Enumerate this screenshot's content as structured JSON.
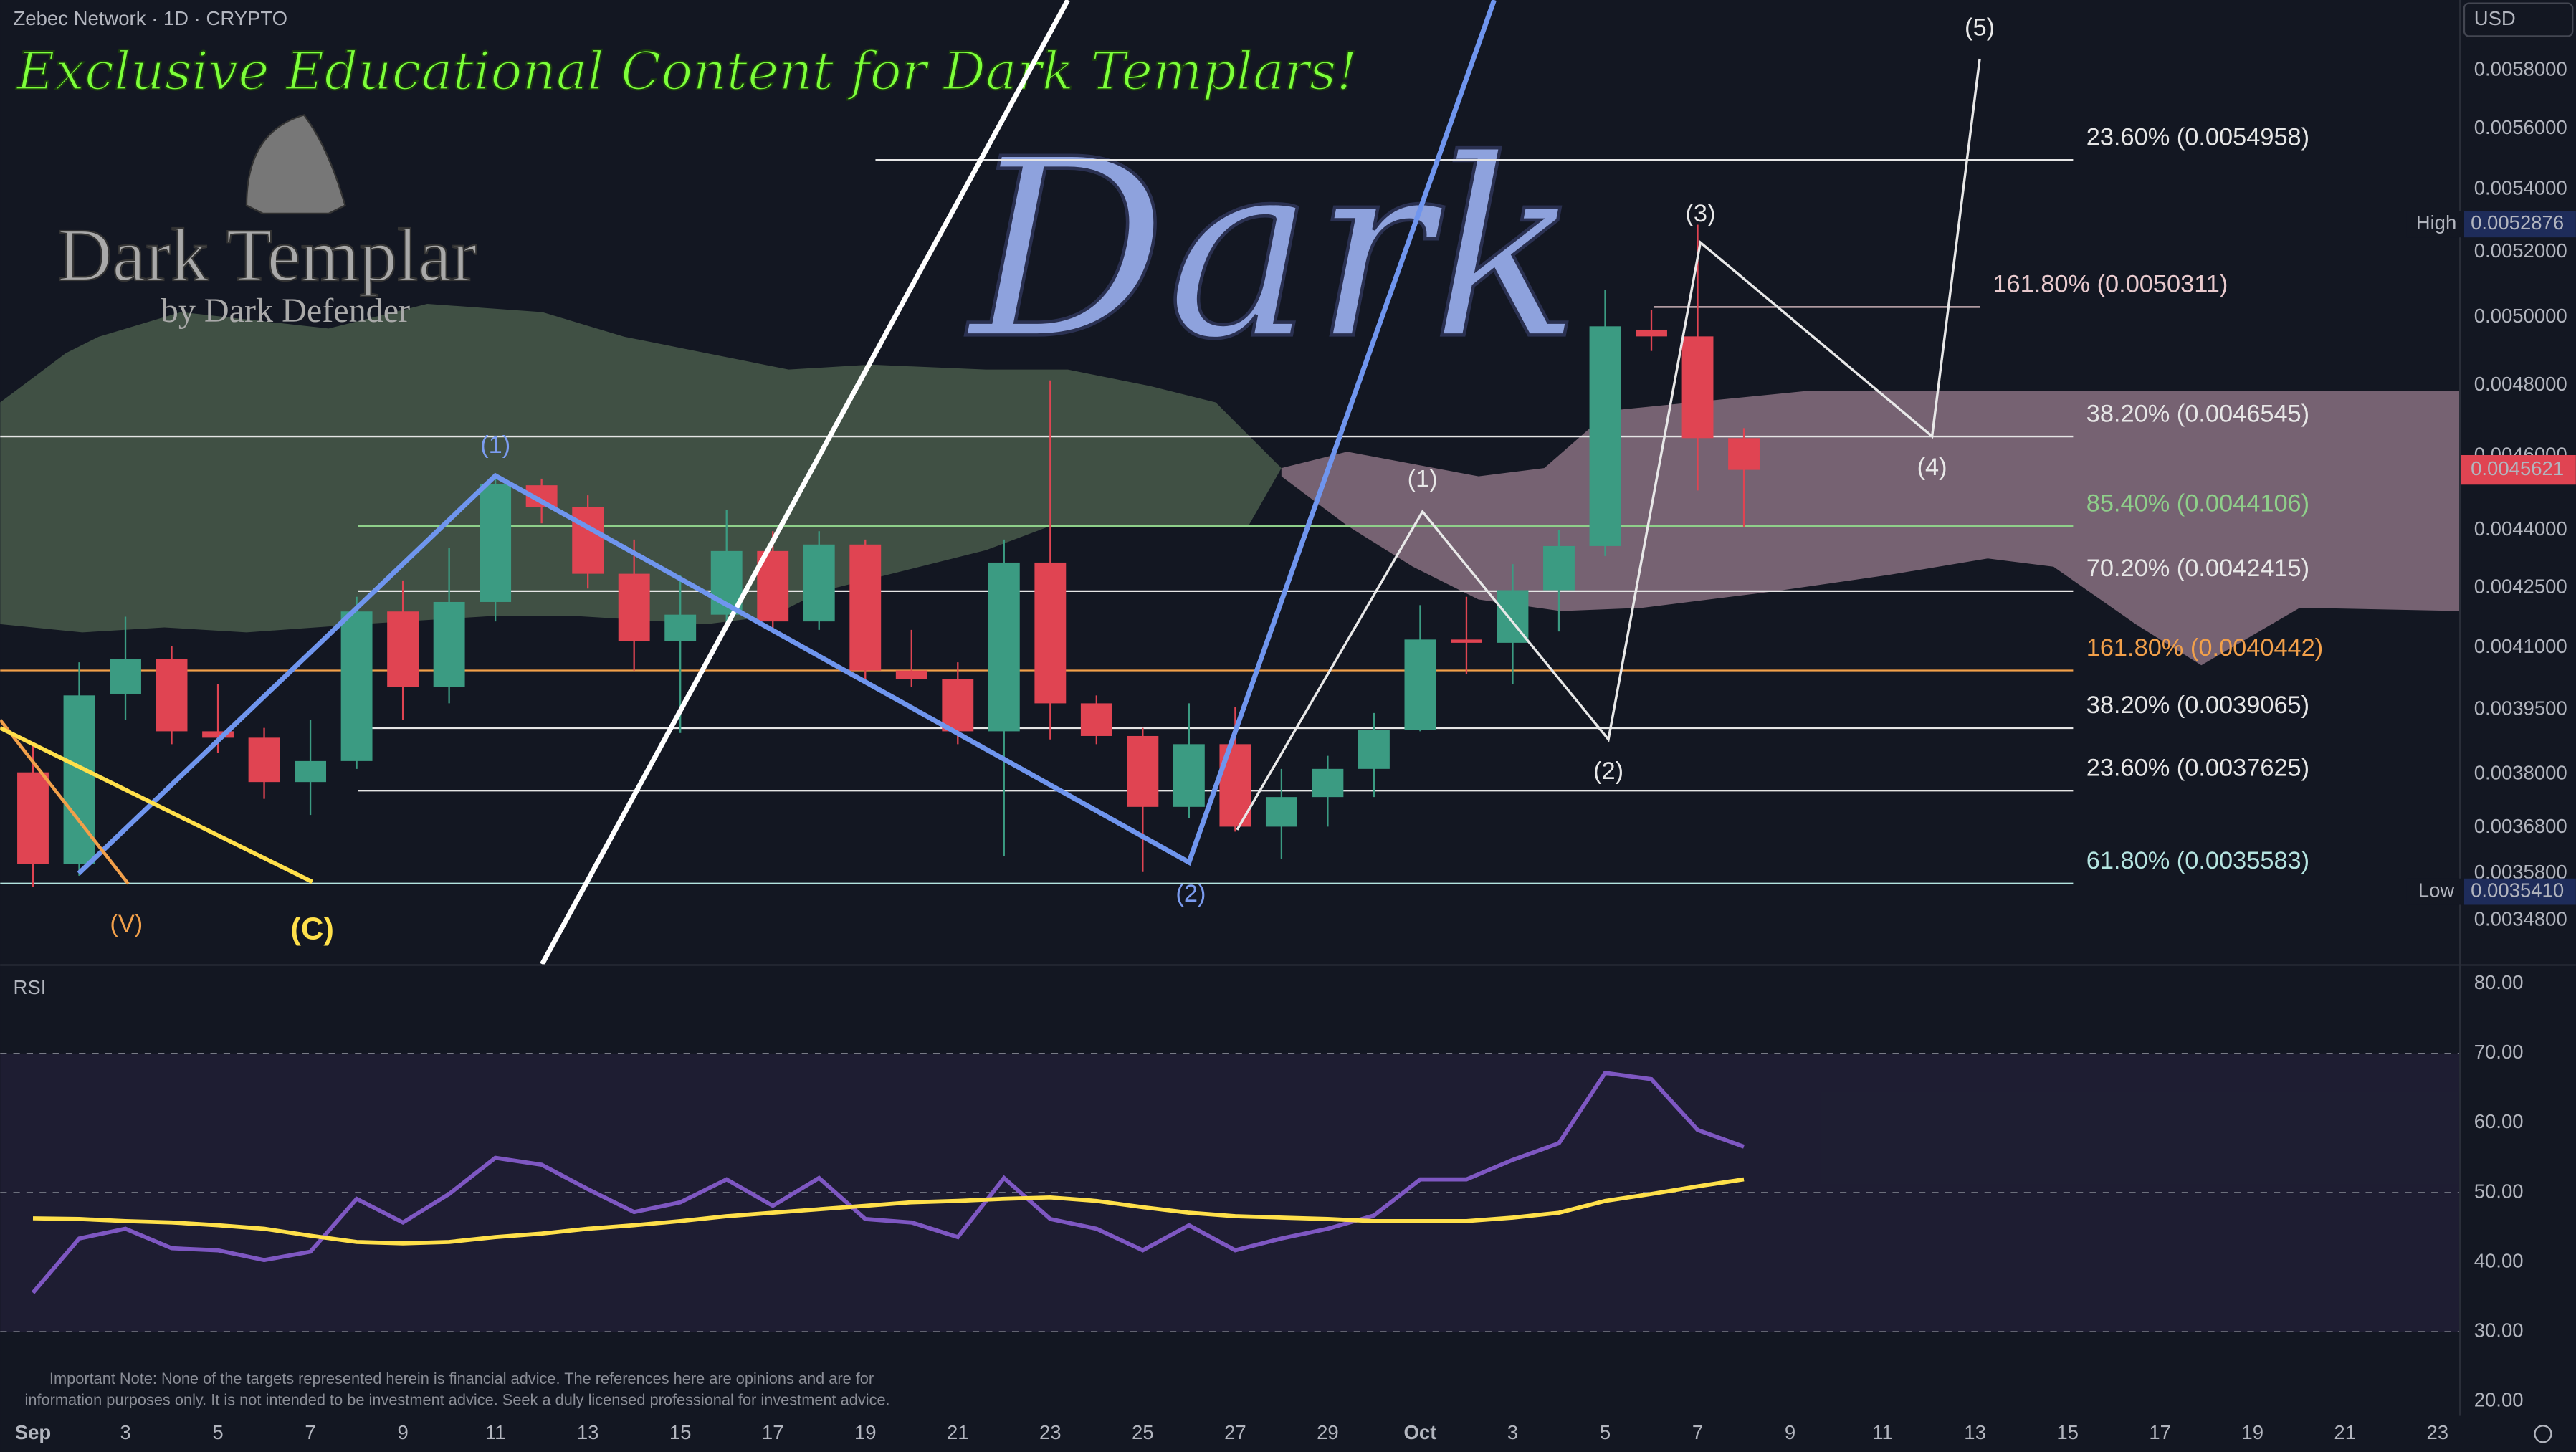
{
  "header": {
    "title": "Zebec Network · 1D · CRYPTO",
    "currency": "USD",
    "banner": "Exclusive Educational Content for Dark Templars!",
    "logo_title": "Dark Templar",
    "logo_subtitle": "by Dark Defender",
    "watermark": "Dark",
    "note": [
      "Important Note: None of the targets represented herein is financial advice. The references here are opinions and are for",
      "information purposes only. It is not intended to be investment advice. Seek a duly licensed professional for investment advice."
    ]
  },
  "chart_data": [
    {
      "type": "candlestick",
      "log_scale": true,
      "up_color": "#3b9b82",
      "down_color": "#e04452",
      "x": [
        0,
        1,
        2,
        3,
        4,
        5,
        6,
        7,
        8,
        9,
        10,
        11,
        12,
        13,
        14,
        15,
        16,
        17,
        18,
        19,
        20,
        21,
        22,
        23,
        24,
        25,
        26,
        27,
        28,
        29,
        30,
        31,
        32,
        33,
        34,
        35,
        36,
        37
      ],
      "open": [
        0.003804,
        0.0036,
        0.003988,
        0.004072,
        0.003899,
        0.003884,
        0.003782,
        0.00383,
        0.00419,
        0.004004,
        0.004214,
        0.00452,
        0.004462,
        0.004286,
        0.004116,
        0.004182,
        0.004345,
        0.004165,
        0.004362,
        0.004044,
        0.004024,
        0.003899,
        0.004315,
        0.003965,
        0.003888,
        0.003726,
        0.003869,
        0.003682,
        0.003748,
        0.003812,
        0.003903,
        0.00412,
        0.004112,
        0.004244,
        0.004358,
        0.004963,
        0.004943,
        0.00465
      ],
      "high": [
        0.003869,
        0.004064,
        0.004177,
        0.004104,
        0.004012,
        0.003907,
        0.003926,
        0.004227,
        0.004269,
        0.004354,
        0.004551,
        0.004538,
        0.004493,
        0.004375,
        0.004282,
        0.004453,
        0.004397,
        0.004397,
        0.004375,
        0.004144,
        0.004064,
        0.004375,
        0.004814,
        0.003984,
        0.003907,
        0.003965,
        0.003957,
        0.003812,
        0.003842,
        0.003942,
        0.004206,
        0.004227,
        0.004311,
        0.004401,
        0.005082,
        0.005022,
        0.005286,
        0.004678
      ],
      "low": [
        0.003551,
        0.003575,
        0.003926,
        0.003869,
        0.003849,
        0.003744,
        0.003708,
        0.003812,
        0.003926,
        0.003965,
        0.004165,
        0.004418,
        0.004248,
        0.004044,
        0.003895,
        0.004144,
        0.004144,
        0.004144,
        0.004024,
        0.004004,
        0.003869,
        0.003618,
        0.00388,
        0.003869,
        0.003583,
        0.003701,
        0.003671,
        0.003611,
        0.003682,
        0.003748,
        0.003899,
        0.004036,
        0.004012,
        0.00414,
        0.004332,
        0.0049,
        0.004506,
        0.004409
      ],
      "close": [
        0.0036,
        0.003984,
        0.004072,
        0.003899,
        0.003884,
        0.003782,
        0.00383,
        0.00419,
        0.004004,
        0.004214,
        0.004524,
        0.004462,
        0.004286,
        0.004116,
        0.004182,
        0.004345,
        0.004165,
        0.004362,
        0.004044,
        0.004024,
        0.003899,
        0.004315,
        0.003965,
        0.003888,
        0.003726,
        0.003869,
        0.003682,
        0.003748,
        0.003812,
        0.003903,
        0.00412,
        0.004112,
        0.004244,
        0.004358,
        0.004973,
        0.004943,
        0.00465,
        0.0045621
      ],
      "xlim": [
        -0.71,
        52.47
      ],
      "ylim": [
        0.00339,
        0.00605
      ],
      "xticks": [
        {
          "value": 0,
          "label": "Sep"
        },
        {
          "value": 2,
          "label": "3"
        },
        {
          "value": 4,
          "label": "5"
        },
        {
          "value": 6,
          "label": "7"
        },
        {
          "value": 8,
          "label": "9"
        },
        {
          "value": 10,
          "label": "11"
        },
        {
          "value": 12,
          "label": "13"
        },
        {
          "value": 14,
          "label": "15"
        },
        {
          "value": 16,
          "label": "17"
        },
        {
          "value": 18,
          "label": "19"
        },
        {
          "value": 20,
          "label": "21"
        },
        {
          "value": 22,
          "label": "23"
        },
        {
          "value": 24,
          "label": "25"
        },
        {
          "value": 26,
          "label": "27"
        },
        {
          "value": 28,
          "label": "29"
        },
        {
          "value": 30,
          "label": "Oct"
        },
        {
          "value": 32,
          "label": "3"
        },
        {
          "value": 34,
          "label": "5"
        },
        {
          "value": 36,
          "label": "7"
        },
        {
          "value": 38,
          "label": "9"
        },
        {
          "value": 40,
          "label": "11"
        },
        {
          "value": 42,
          "label": "13"
        },
        {
          "value": 44,
          "label": "15"
        },
        {
          "value": 46,
          "label": "17"
        },
        {
          "value": 48,
          "label": "19"
        },
        {
          "value": 50,
          "label": "21"
        },
        {
          "value": 52,
          "label": "23"
        }
      ],
      "yticks": [
        {
          "value": 0.0058,
          "label": "0.0058000"
        },
        {
          "value": 0.0056,
          "label": "0.0056000"
        },
        {
          "value": 0.0054,
          "label": "0.0054000"
        },
        {
          "value": 0.0052,
          "label": "0.0052000"
        },
        {
          "value": 0.005,
          "label": "0.0050000"
        },
        {
          "value": 0.0048,
          "label": "0.0048000"
        },
        {
          "value": 0.0046,
          "label": "0.0046000"
        },
        {
          "value": 0.0044,
          "label": "0.0044000"
        },
        {
          "value": 0.00425,
          "label": "0.0042500"
        },
        {
          "value": 0.0041,
          "label": "0.0041000"
        },
        {
          "value": 0.00395,
          "label": "0.0039500"
        },
        {
          "value": 0.0038,
          "label": "0.0038000"
        },
        {
          "value": 0.00368,
          "label": "0.0036800"
        },
        {
          "value": 0.00358,
          "label": "0.0035800"
        },
        {
          "value": 0.00348,
          "label": "0.0034800"
        }
      ],
      "high_marker": {
        "label": "High",
        "value": 0.0052876,
        "value_label": "0.0052876"
      },
      "low_marker": {
        "label": "Low",
        "value": 0.003541,
        "value_label": "0.0035410"
      },
      "last_price": 0.0045621,
      "fib_levels": [
        {
          "label": "23.60% (0.0054958)",
          "value": 0.0054958,
          "from": 18.22,
          "to": 44.12,
          "color": "#e6e6e6"
        },
        {
          "label": "161.80% (0.0050311)",
          "value": 0.0050311,
          "from": 35.06,
          "to": 42.1,
          "color": "#e8c9cd"
        },
        {
          "label": "38.20% (0.0046545)",
          "value": 0.0046545,
          "from": -0.71,
          "to": 44.12,
          "color": "#e6e6e6"
        },
        {
          "label": "85.40% (0.0044106)",
          "value": 0.0044106,
          "from": 7.03,
          "to": 44.12,
          "color": "#8fcf8a"
        },
        {
          "label": "70.20% (0.0042415)",
          "value": 0.0042415,
          "from": 7.03,
          "to": 44.12,
          "color": "#e6e6e6"
        },
        {
          "label": "161.80% (0.0040442)",
          "value": 0.0040442,
          "from": -0.71,
          "to": 44.12,
          "color": "#f2a04a"
        },
        {
          "label": "38.20% (0.0039065)",
          "value": 0.0039065,
          "from": 7.03,
          "to": 44.12,
          "color": "#e6e6e6"
        },
        {
          "label": "23.60% (0.0037625)",
          "value": 0.0037625,
          "from": 7.03,
          "to": 44.12,
          "color": "#e6e6e6"
        },
        {
          "label": "61.80% (0.0035583)",
          "value": 0.0035583,
          "from": -0.71,
          "to": 44.12,
          "color": "#b4e4e0"
        }
      ],
      "waves": [
        {
          "color": "#ffffff",
          "width": 3,
          "points": [
            [
              11.01,
              0.00339
            ],
            [
              22.38,
              0.00605
            ]
          ]
        },
        {
          "color": "#6f95ee",
          "width": 3,
          "points": [
            [
              0.99,
              0.00358
            ],
            [
              10,
              0.004546
            ],
            [
              25,
              0.003604
            ],
            [
              31.6,
              0.00605
            ]
          ]
        },
        {
          "color": "#e8e8e8",
          "width": 1.5,
          "points": [
            [
              26.04,
              0.003675
            ],
            [
              30.05,
              0.004449
            ],
            [
              34.07,
              0.00388
            ],
            [
              36.06,
              0.00523
            ],
            [
              41.07,
              0.004655
            ],
            [
              42.1,
              0.00584
            ]
          ]
        },
        {
          "color": "#f2a04a",
          "width": 2,
          "points": [
            [
              -0.71,
              0.003926
            ],
            [
              2.06,
              0.003558
            ]
          ]
        },
        {
          "color": "#ffe04a",
          "width": 2.5,
          "points": [
            [
              -0.71,
              0.003907
            ],
            [
              6.04,
              0.003562
            ]
          ]
        }
      ],
      "wave_labels": [
        {
          "text": "(1)",
          "x": 10,
          "y": 0.004627,
          "color": "#7b9cf0"
        },
        {
          "text": "(2)",
          "x": 25.04,
          "y": 0.003534,
          "color": "#7b9cf0"
        },
        {
          "text": "(V)",
          "x": 2.02,
          "y": 0.00347,
          "color": "#f2a04a"
        },
        {
          "text": "(C)",
          "x": 6.04,
          "y": 0.003458,
          "color": "#ffe04a"
        },
        {
          "text": "(1)",
          "x": 30.05,
          "y": 0.004533,
          "color": "#e8e8e8"
        },
        {
          "text": "(2)",
          "x": 34.07,
          "y": 0.003804,
          "color": "#e8e8e8"
        },
        {
          "text": "(3)",
          "x": 36.06,
          "y": 0.005317,
          "color": "#e8e8e8"
        },
        {
          "text": "(4)",
          "x": 41.07,
          "y": 0.004565,
          "color": "#e8e8e8"
        },
        {
          "text": "(5)",
          "x": 42.1,
          "y": 0.005945,
          "color": "#e8e8e8"
        }
      ]
    },
    {
      "type": "line",
      "title": "RSI",
      "x": [
        0,
        1,
        2,
        3,
        4,
        5,
        6,
        7,
        8,
        9,
        10,
        11,
        12,
        13,
        14,
        15,
        16,
        17,
        18,
        19,
        20,
        21,
        22,
        23,
        24,
        25,
        26,
        27,
        28,
        29,
        30,
        31,
        32,
        33,
        34,
        35,
        36,
        37
      ],
      "series": [
        {
          "color": "#7e57c2",
          "values": [
            35.6,
            43.4,
            44.8,
            42.0,
            41.7,
            40.3,
            41.5,
            49.1,
            45.7,
            49.8,
            55.0,
            54.0,
            50.5,
            47.2,
            48.6,
            51.9,
            48.1,
            52.1,
            46.2,
            45.7,
            43.6,
            52.1,
            46.2,
            44.8,
            41.7,
            45.3,
            41.7,
            43.4,
            44.8,
            46.7,
            51.9,
            51.9,
            54.7,
            57.1,
            67.2,
            66.3,
            59.0,
            56.6
          ]
        },
        {
          "color": "#ffe04a",
          "values": [
            46.3,
            46.2,
            45.9,
            45.7,
            45.3,
            44.8,
            43.8,
            42.9,
            42.7,
            42.9,
            43.6,
            44.1,
            44.8,
            45.3,
            45.9,
            46.6,
            47.1,
            47.6,
            48.1,
            48.6,
            48.8,
            49.1,
            49.3,
            48.8,
            47.9,
            47.1,
            46.6,
            46.4,
            46.2,
            45.9,
            45.9,
            45.9,
            46.4,
            47.1,
            48.8,
            49.8,
            50.9,
            51.9
          ]
        }
      ],
      "xlim": [
        -0.71,
        52.47
      ],
      "ylim": [
        17.9,
        82.6
      ],
      "yticks": [
        {
          "value": 80,
          "label": "80.00"
        },
        {
          "value": 70,
          "label": "70.00"
        },
        {
          "value": 60,
          "label": "60.00"
        },
        {
          "value": 50,
          "label": "50.00"
        },
        {
          "value": 40,
          "label": "40.00"
        },
        {
          "value": 30,
          "label": "30.00"
        },
        {
          "value": 20,
          "label": "20.00"
        }
      ],
      "band": [
        30,
        70
      ],
      "midline": 50
    }
  ]
}
